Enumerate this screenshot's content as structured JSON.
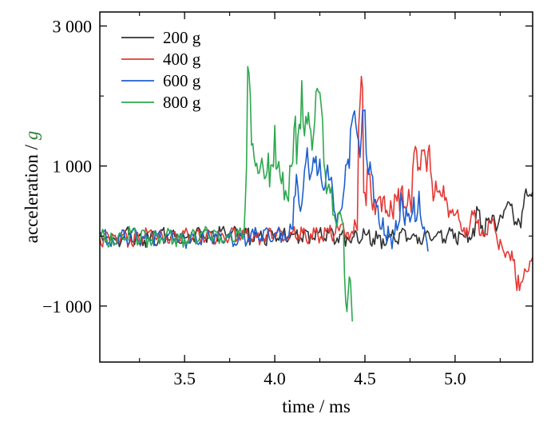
{
  "chart_data": {
    "type": "line",
    "title": "",
    "xlabel": "time / ms",
    "ylabel_text": "acceleration / ",
    "ylabel_unit": "g",
    "ylabel_unit_color": "#2e7d32",
    "xlim": [
      3.03,
      5.43
    ],
    "ylim": [
      -1800,
      3200
    ],
    "x_ticks": [
      3.5,
      4.0,
      4.5,
      5.0
    ],
    "x_tick_labels": [
      "3.5",
      "4.0",
      "4.5",
      "5.0"
    ],
    "x_minor_ticks": [
      3.25,
      3.75,
      4.25,
      4.75,
      5.25
    ],
    "y_ticks": [
      -1000,
      1000,
      3000
    ],
    "y_tick_labels": [
      "−1 000",
      "1 000",
      "3 000"
    ],
    "y_minor_ticks": [
      0,
      2000
    ],
    "grid": false,
    "legend_position": "top-left",
    "series": [
      {
        "name": "200 g",
        "color": "#333333",
        "x": [
          3.03,
          3.1,
          3.2,
          3.3,
          3.4,
          3.5,
          3.6,
          3.7,
          3.8,
          3.9,
          4.0,
          4.1,
          4.2,
          4.3,
          4.4,
          4.5,
          4.6,
          4.7,
          4.8,
          4.9,
          5.0,
          5.05,
          5.1,
          5.12,
          5.15,
          5.2,
          5.25,
          5.3,
          5.35,
          5.4,
          5.43
        ],
        "y": [
          60,
          -40,
          50,
          -30,
          40,
          -20,
          50,
          60,
          70,
          -20,
          40,
          20,
          30,
          40,
          -10,
          30,
          -40,
          50,
          -20,
          30,
          40,
          -10,
          110,
          420,
          150,
          200,
          300,
          480,
          250,
          580,
          630
        ]
      },
      {
        "name": "400 g",
        "color": "#e53935",
        "x": [
          3.03,
          3.1,
          3.2,
          3.3,
          3.4,
          3.5,
          3.6,
          3.7,
          3.8,
          3.9,
          4.0,
          4.1,
          4.2,
          4.3,
          4.35,
          4.4,
          4.45,
          4.48,
          4.5,
          4.52,
          4.55,
          4.6,
          4.65,
          4.7,
          4.75,
          4.78,
          4.8,
          4.85,
          4.9,
          4.95,
          5.0,
          5.05,
          5.1,
          5.15,
          5.2,
          5.25,
          5.3,
          5.35,
          5.4,
          5.43
        ],
        "y": [
          -40,
          30,
          -30,
          50,
          -20,
          40,
          20,
          -10,
          60,
          -20,
          40,
          60,
          30,
          60,
          120,
          50,
          150,
          2280,
          620,
          880,
          500,
          540,
          350,
          660,
          520,
          1280,
          980,
          1200,
          640,
          550,
          300,
          120,
          300,
          80,
          180,
          -50,
          -260,
          -560,
          -510,
          -300
        ]
      },
      {
        "name": "600 g",
        "color": "#1e5fd0",
        "x": [
          3.03,
          3.1,
          3.2,
          3.3,
          3.4,
          3.5,
          3.6,
          3.7,
          3.8,
          3.9,
          4.0,
          4.05,
          4.1,
          4.12,
          4.15,
          4.18,
          4.2,
          4.25,
          4.3,
          4.35,
          4.38,
          4.4,
          4.42,
          4.45,
          4.48,
          4.5,
          4.55,
          4.6,
          4.65,
          4.7,
          4.75,
          4.8,
          4.85
        ],
        "y": [
          30,
          -30,
          40,
          -20,
          30,
          -40,
          40,
          20,
          -30,
          40,
          30,
          60,
          100,
          880,
          450,
          1260,
          870,
          1100,
          800,
          320,
          580,
          1020,
          1520,
          1580,
          1420,
          1800,
          480,
          260,
          -180,
          620,
          200,
          640,
          -220
        ]
      },
      {
        "name": "800 g",
        "color": "#2ea84f",
        "x": [
          3.03,
          3.1,
          3.2,
          3.3,
          3.4,
          3.5,
          3.6,
          3.7,
          3.8,
          3.83,
          3.85,
          3.9,
          3.95,
          4.0,
          4.03,
          4.06,
          4.1,
          4.15,
          4.18,
          4.2,
          4.25,
          4.28,
          4.3,
          4.33,
          4.36,
          4.38,
          4.4,
          4.42,
          4.43
        ],
        "y": [
          40,
          -30,
          50,
          -20,
          30,
          -40,
          50,
          -10,
          30,
          90,
          2420,
          1040,
          840,
          1580,
          850,
          650,
          1050,
          2220,
          1600,
          1500,
          2050,
          900,
          740,
          300,
          350,
          180,
          -1080,
          -640,
          -1220
        ]
      }
    ]
  }
}
